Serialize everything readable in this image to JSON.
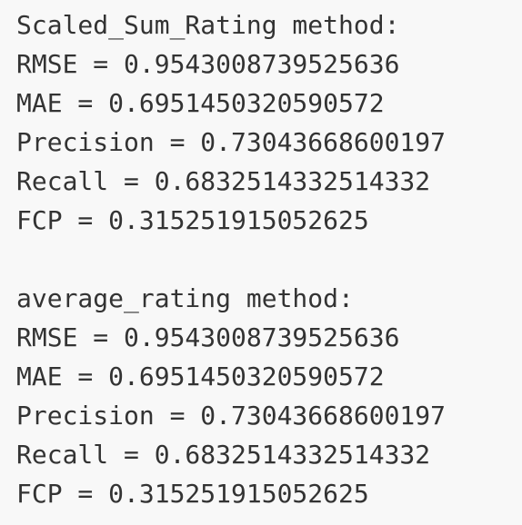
{
  "output": {
    "blocks": [
      {
        "header": "Scaled_Sum_Rating method:",
        "lines": [
          "RMSE = 0.9543008739525636",
          "MAE = 0.6951450320590572",
          "Precision = 0.73043668600197",
          "Recall = 0.6832514332514332",
          "FCP = 0.315251915052625"
        ]
      },
      {
        "header": "average_rating method:",
        "lines": [
          "RMSE = 0.9543008739525636",
          "MAE = 0.6951450320590572",
          "Precision = 0.73043668600197",
          "Recall = 0.6832514332514332",
          "FCP = 0.315251915052625"
        ]
      }
    ]
  },
  "colors": {
    "background": "#f8f8f8",
    "text": "#333333"
  }
}
